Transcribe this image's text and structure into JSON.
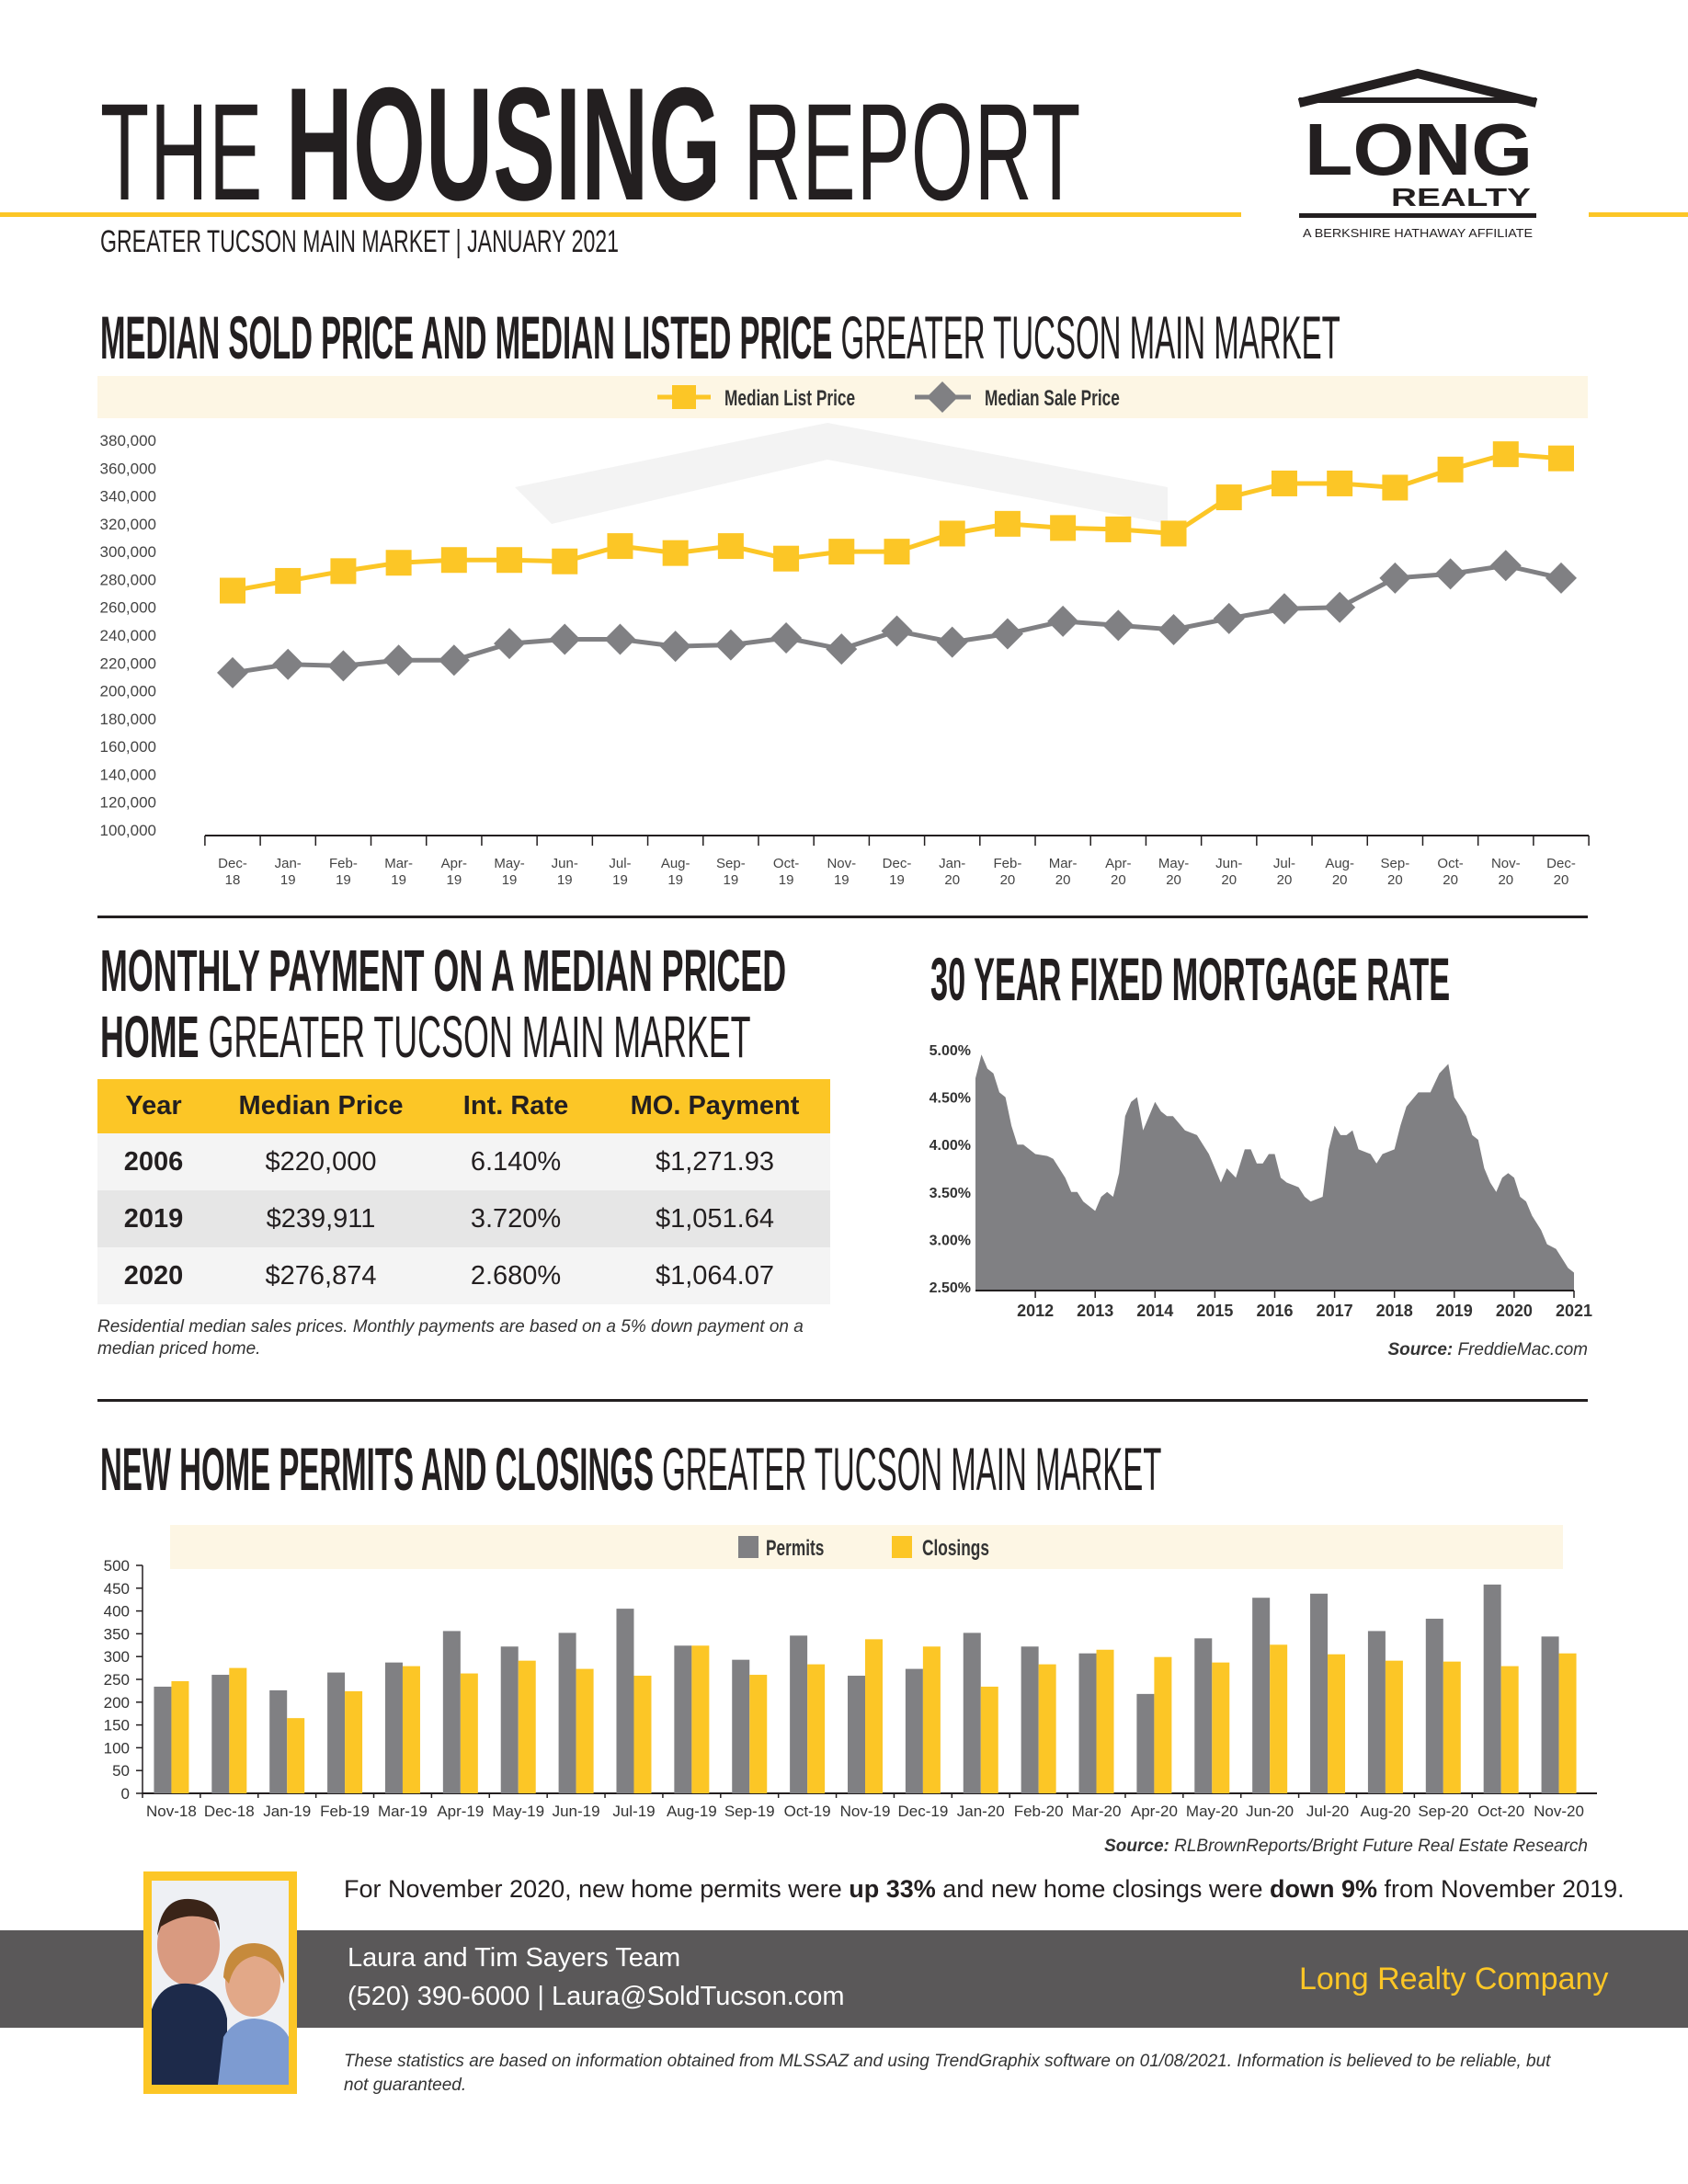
{
  "header": {
    "title_pre": "THE",
    "title_main": "HOUSING",
    "title_post": "REPORT",
    "subtitle": "GREATER TUCSON MAIN MARKET | JANUARY 2021",
    "logo": {
      "word1": "LONG",
      "word2": "REALTY",
      "tagline": "A BERKSHIRE HATHAWAY AFFILIATE"
    }
  },
  "section1": {
    "title_bold": "MEDIAN SOLD PRICE AND MEDIAN LISTED PRICE",
    "title_light": "GREATER TUCSON MAIN MARKET"
  },
  "section2": {
    "title_bold_1": "MONTHLY PAYMENT ON A MEDIAN PRICED",
    "title_bold_2": "HOME",
    "title_light": "GREATER TUCSON MAIN MARKET",
    "note": "Residential median sales prices. Monthly payments are based on a 5% down payment on a median priced home."
  },
  "section3": {
    "title": "30 YEAR FIXED MORTGAGE RATE"
  },
  "section4": {
    "title_bold": "NEW HOME PERMITS AND CLOSINGS",
    "title_light": "GREATER TUCSON MAIN MARKET"
  },
  "payment_table": {
    "headers": [
      "Year",
      "Median Price",
      "Int. Rate",
      "MO. Payment"
    ],
    "rows": [
      [
        "2006",
        "$220,000",
        "6.140%",
        "$1,271.93"
      ],
      [
        "2019",
        "$239,911",
        "3.720%",
        "$1,051.64"
      ],
      [
        "2020",
        "$276,874",
        "2.680%",
        "$1,064.07"
      ]
    ]
  },
  "summary": {
    "pre": "For November 2020, new home permits were ",
    "b1": "up 33%",
    "mid": " and new home closings were ",
    "b2": "down 9%",
    "post": " from November 2019."
  },
  "agent": {
    "name": "Laura and Tim Sayers Team",
    "contact": "(520) 390-6000 | Laura@SoldTucson.com",
    "company": "Long Realty Company"
  },
  "disclaimer": "These statistics are based on information obtained from MLSSAZ and using TrendGraphix software on 01/08/2021. Information is believed to be reliable, but not guaranteed.",
  "colors": {
    "accent": "#fcc626",
    "series_gray": "#808083",
    "band": "#5a5859",
    "legend_bg": "#fdf6e4"
  },
  "chart_data": [
    {
      "type": "line",
      "categories": [
        "Dec-18",
        "Jan-19",
        "Feb-19",
        "Mar-19",
        "Apr-19",
        "May-19",
        "Jun-19",
        "Jul-19",
        "Aug-19",
        "Sep-19",
        "Oct-19",
        "Nov-19",
        "Dec-19",
        "Jan-20",
        "Feb-20",
        "Mar-20",
        "Apr-20",
        "May-20",
        "Jun-20",
        "Jul-20",
        "Aug-20",
        "Sep-20",
        "Oct-20",
        "Nov-20",
        "Dec-20"
      ],
      "series": [
        {
          "name": "Median List Price",
          "color": "#fcc626",
          "marker": "square",
          "values": [
            272000,
            279000,
            286000,
            292000,
            294000,
            294000,
            293000,
            304000,
            299000,
            304000,
            295000,
            300000,
            300000,
            313000,
            320000,
            317000,
            316000,
            313000,
            339000,
            349000,
            349000,
            346000,
            359000,
            370000,
            367000
          ]
        },
        {
          "name": "Median Sale Price",
          "color": "#808083",
          "marker": "diamond",
          "values": [
            213000,
            219000,
            218000,
            222000,
            222000,
            234000,
            237000,
            237000,
            232000,
            233000,
            238000,
            230000,
            243000,
            235000,
            241000,
            250000,
            247000,
            244000,
            252000,
            259000,
            260000,
            281000,
            284000,
            290000,
            281000
          ]
        }
      ],
      "yticks": [
        "380,000",
        "360,000",
        "340,000",
        "320,000",
        "300,000",
        "280,000",
        "260,000",
        "240,000",
        "220,000",
        "200,000",
        "180,000",
        "160,000",
        "140,000",
        "120,000",
        "100,000"
      ],
      "ylim": [
        100000,
        380000
      ],
      "legend": "top-center",
      "grid": false
    },
    {
      "type": "area",
      "yticks": [
        "5.00%",
        "4.50%",
        "4.00%",
        "3.50%",
        "3.00%",
        "2.50%"
      ],
      "xticks": [
        "2012",
        "2013",
        "2014",
        "2015",
        "2016",
        "2017",
        "2018",
        "2019",
        "2020",
        "2021"
      ],
      "ylim": [
        2.5,
        5.0
      ],
      "xlim": [
        2011.0,
        2021.0
      ],
      "color": "#808083",
      "source_label": "Source:",
      "source": "FreddieMac.com",
      "points": [
        [
          2011.0,
          4.7
        ],
        [
          2011.1,
          4.95
        ],
        [
          2011.2,
          4.8
        ],
        [
          2011.3,
          4.75
        ],
        [
          2011.4,
          4.55
        ],
        [
          2011.5,
          4.5
        ],
        [
          2011.6,
          4.2
        ],
        [
          2011.7,
          4.0
        ],
        [
          2011.8,
          4.0
        ],
        [
          2011.9,
          3.95
        ],
        [
          2012.0,
          3.9
        ],
        [
          2012.2,
          3.88
        ],
        [
          2012.3,
          3.85
        ],
        [
          2012.5,
          3.65
        ],
        [
          2012.6,
          3.5
        ],
        [
          2012.7,
          3.5
        ],
        [
          2012.8,
          3.4
        ],
        [
          2012.9,
          3.35
        ],
        [
          2013.0,
          3.3
        ],
        [
          2013.1,
          3.45
        ],
        [
          2013.2,
          3.5
        ],
        [
          2013.3,
          3.45
        ],
        [
          2013.4,
          3.7
        ],
        [
          2013.5,
          4.3
        ],
        [
          2013.6,
          4.45
        ],
        [
          2013.7,
          4.5
        ],
        [
          2013.8,
          4.15
        ],
        [
          2013.9,
          4.3
        ],
        [
          2014.0,
          4.45
        ],
        [
          2014.1,
          4.35
        ],
        [
          2014.2,
          4.3
        ],
        [
          2014.3,
          4.3
        ],
        [
          2014.5,
          4.15
        ],
        [
          2014.7,
          4.1
        ],
        [
          2014.8,
          4.0
        ],
        [
          2014.9,
          3.9
        ],
        [
          2015.0,
          3.75
        ],
        [
          2015.1,
          3.6
        ],
        [
          2015.2,
          3.75
        ],
        [
          2015.35,
          3.65
        ],
        [
          2015.5,
          3.95
        ],
        [
          2015.6,
          3.95
        ],
        [
          2015.7,
          3.8
        ],
        [
          2015.8,
          3.8
        ],
        [
          2015.9,
          3.9
        ],
        [
          2016.0,
          3.9
        ],
        [
          2016.1,
          3.65
        ],
        [
          2016.2,
          3.6
        ],
        [
          2016.4,
          3.55
        ],
        [
          2016.5,
          3.45
        ],
        [
          2016.6,
          3.4
        ],
        [
          2016.8,
          3.45
        ],
        [
          2016.9,
          3.95
        ],
        [
          2017.0,
          4.2
        ],
        [
          2017.1,
          4.1
        ],
        [
          2017.2,
          4.1
        ],
        [
          2017.3,
          4.15
        ],
        [
          2017.4,
          3.95
        ],
        [
          2017.6,
          3.9
        ],
        [
          2017.7,
          3.8
        ],
        [
          2017.8,
          3.9
        ],
        [
          2018.0,
          3.95
        ],
        [
          2018.1,
          4.2
        ],
        [
          2018.2,
          4.4
        ],
        [
          2018.4,
          4.55
        ],
        [
          2018.6,
          4.55
        ],
        [
          2018.75,
          4.75
        ],
        [
          2018.9,
          4.85
        ],
        [
          2019.0,
          4.5
        ],
        [
          2019.2,
          4.3
        ],
        [
          2019.3,
          4.1
        ],
        [
          2019.4,
          4.05
        ],
        [
          2019.5,
          3.75
        ],
        [
          2019.6,
          3.6
        ],
        [
          2019.7,
          3.5
        ],
        [
          2019.8,
          3.65
        ],
        [
          2019.9,
          3.7
        ],
        [
          2020.0,
          3.65
        ],
        [
          2020.1,
          3.45
        ],
        [
          2020.2,
          3.4
        ],
        [
          2020.3,
          3.25
        ],
        [
          2020.45,
          3.1
        ],
        [
          2020.55,
          2.95
        ],
        [
          2020.7,
          2.9
        ],
        [
          2020.8,
          2.8
        ],
        [
          2020.9,
          2.7
        ],
        [
          2021.0,
          2.65
        ]
      ]
    },
    {
      "type": "bar",
      "categories": [
        "Nov-18",
        "Dec-18",
        "Jan-19",
        "Feb-19",
        "Mar-19",
        "Apr-19",
        "May-19",
        "Jun-19",
        "Jul-19",
        "Aug-19",
        "Sep-19",
        "Oct-19",
        "Nov-19",
        "Dec-19",
        "Jan-20",
        "Feb-20",
        "Mar-20",
        "Apr-20",
        "May-20",
        "Jun-20",
        "Jul-20",
        "Aug-20",
        "Sep-20",
        "Oct-20",
        "Nov-20"
      ],
      "series": [
        {
          "name": "Permits",
          "color": "#808083",
          "values": [
            234,
            260,
            226,
            265,
            287,
            356,
            322,
            352,
            405,
            324,
            293,
            346,
            258,
            273,
            352,
            322,
            307,
            218,
            340,
            429,
            438,
            356,
            383,
            458,
            344
          ]
        },
        {
          "name": "Closings",
          "color": "#fcc626",
          "values": [
            246,
            275,
            165,
            224,
            279,
            263,
            291,
            273,
            258,
            324,
            260,
            283,
            338,
            322,
            234,
            283,
            315,
            299,
            287,
            326,
            305,
            291,
            289,
            279,
            307
          ]
        }
      ],
      "yticks": [
        "500",
        "450",
        "400",
        "350",
        "300",
        "250",
        "200",
        "150",
        "100",
        "50",
        "0"
      ],
      "ylim": [
        0,
        500
      ],
      "legend": "top-center",
      "source_label": "Source:",
      "source": "RLBrownReports/Bright Future Real Estate Research"
    }
  ]
}
